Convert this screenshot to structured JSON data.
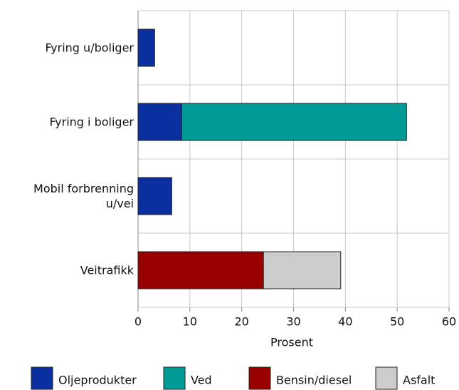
{
  "chart_data": {
    "type": "stacked_barh",
    "categories": [
      "Fyring u/boliger",
      "Fyring i boliger",
      "Mobil forbrenning u/vei",
      "Veitrafikk"
    ],
    "series": [
      {
        "name": "Oljeprodukter",
        "color": "#0a2f9e",
        "values": [
          3.2,
          8.4,
          6.5,
          null
        ]
      },
      {
        "name": "Ved",
        "color": "#009a97",
        "values": [
          null,
          43.4,
          null,
          null
        ]
      },
      {
        "name": "Bensin/diesel",
        "color": "#990000",
        "values": [
          null,
          null,
          null,
          24.2
        ]
      },
      {
        "name": "Asfalt",
        "color": "#cccccc",
        "values": [
          null,
          null,
          null,
          14.9
        ]
      }
    ],
    "xlabel": "Prosent",
    "xlim": [
      0,
      60
    ],
    "xticks": [
      0,
      10,
      20,
      30,
      40,
      50,
      60
    ],
    "grid": true,
    "legend": "bottom"
  }
}
